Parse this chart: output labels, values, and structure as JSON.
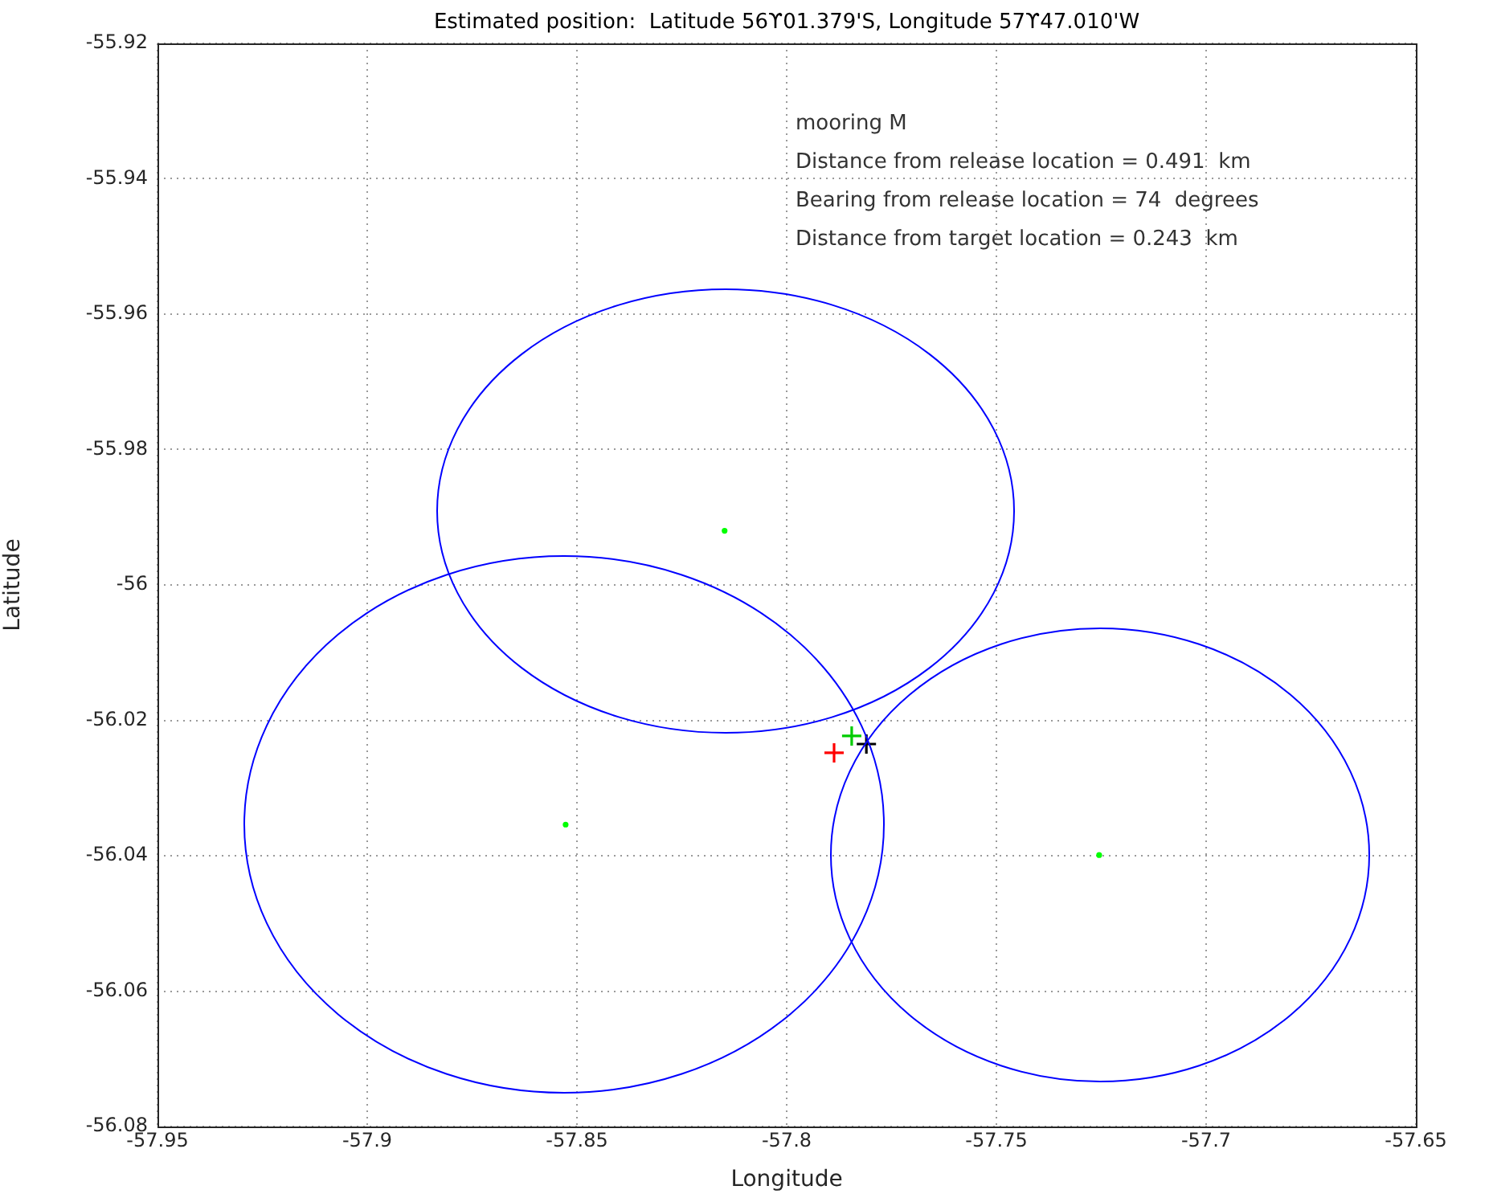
{
  "chart_data": {
    "type": "scatter",
    "title": "Estimated position:  Latitude 56ϒ01.379'S, Longitude 57ϒ47.010'W",
    "xlabel": "Longitude",
    "ylabel": "Latitude",
    "annotations": [
      "mooring M",
      "Distance from release location = 0.491  km",
      "Bearing from release location = 74  degrees",
      "Distance from target location = 0.243  km"
    ],
    "xlim": [
      -57.95,
      -57.65
    ],
    "xticks": [
      -57.95,
      -57.9,
      -57.85,
      -57.8,
      -57.75,
      -57.7,
      -57.65
    ],
    "ylim": [
      -56.08,
      -55.92
    ],
    "yticks": [
      -56.08,
      -56.06,
      -56.04,
      -56.02,
      -56,
      -55.98,
      -55.96,
      -55.94,
      -55.92
    ],
    "grid": true,
    "legend": false,
    "series": [
      {
        "type": "scatter",
        "marker": "circle",
        "color": "#00ff00",
        "x": [
          -57.8148,
          -57.8527,
          -57.7255
        ],
        "values": [
          -55.992,
          -56.0354,
          -56.0399
        ]
      },
      {
        "type": "scatter",
        "marker": "cross",
        "color": "#ff0000",
        "x": [
          -57.7887
        ],
        "values": [
          -56.0248
        ]
      },
      {
        "type": "scatter",
        "marker": "cross",
        "color": "#00cc00",
        "x": [
          -57.7845
        ],
        "values": [
          -56.0223
        ]
      },
      {
        "type": "scatter",
        "marker": "cross",
        "color": "#000000",
        "x": [
          -57.781
        ],
        "values": [
          -56.0235
        ]
      }
    ]
  }
}
